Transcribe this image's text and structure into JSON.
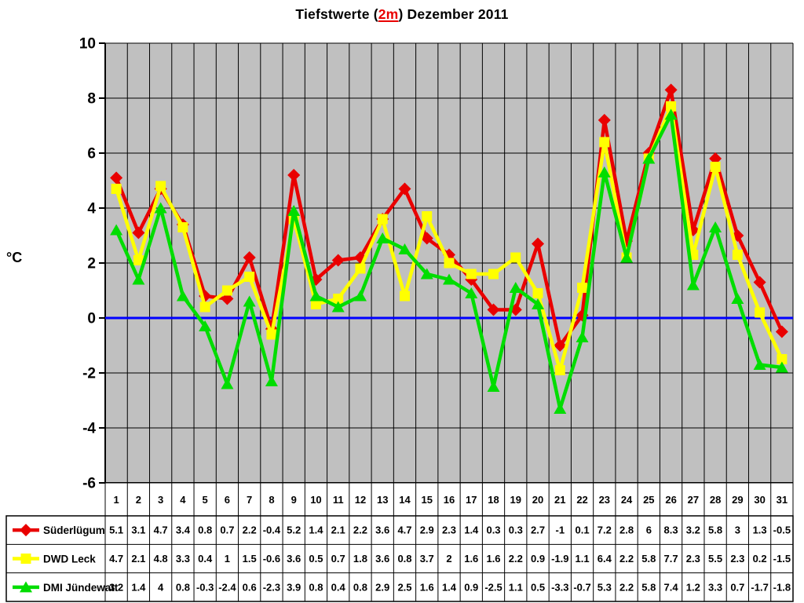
{
  "title": {
    "prefix": "Tiefstwerte (",
    "highlight": "2m",
    "suffix": ") Dezember 2011",
    "highlight_color": "#e90000"
  },
  "colors": {
    "plot_background": "#c0c0c0",
    "grid": "#000000",
    "zero_line": "#0000ff",
    "text": "#000000"
  },
  "chart_data": {
    "type": "line",
    "title": "Tiefstwerte (2m) Dezember 2011",
    "xlabel": "",
    "ylabel": "°C",
    "ylim": [
      -6,
      10
    ],
    "y_ticks": [
      10,
      8,
      6,
      4,
      2,
      0,
      -2,
      -4,
      -6
    ],
    "grid": true,
    "zero_line_color": "#0000ff",
    "legend_position": "bottom-left-table",
    "categories": [
      1,
      2,
      3,
      4,
      5,
      6,
      7,
      8,
      9,
      10,
      11,
      12,
      13,
      14,
      15,
      16,
      17,
      18,
      19,
      20,
      21,
      22,
      23,
      24,
      25,
      26,
      27,
      28,
      29,
      30,
      31
    ],
    "series": [
      {
        "name": "Süderlügum",
        "color": "#e90000",
        "marker": "diamond",
        "values": [
          5.1,
          3.1,
          4.7,
          3.4,
          0.8,
          0.7,
          2.2,
          -0.4,
          5.2,
          1.4,
          2.1,
          2.2,
          3.6,
          4.7,
          2.9,
          2.3,
          1.4,
          0.3,
          0.3,
          2.7,
          -1,
          0.1,
          7.2,
          2.8,
          6,
          8.3,
          3.2,
          5.8,
          3,
          1.3,
          -0.5
        ]
      },
      {
        "name": "DWD Leck",
        "color": "#ffff00",
        "marker": "square",
        "values": [
          4.7,
          2.1,
          4.8,
          3.3,
          0.4,
          1,
          1.5,
          -0.6,
          3.6,
          0.5,
          0.7,
          1.8,
          3.6,
          0.8,
          3.7,
          2,
          1.6,
          1.6,
          2.2,
          0.9,
          -1.9,
          1.1,
          6.4,
          2.2,
          5.8,
          7.7,
          2.3,
          5.5,
          2.3,
          0.2,
          -1.5
        ]
      },
      {
        "name": "DMI Jündewatt",
        "color": "#00dd00",
        "marker": "triangle",
        "values": [
          3.2,
          1.4,
          4,
          0.8,
          -0.3,
          -2.4,
          0.6,
          -2.3,
          3.9,
          0.8,
          0.4,
          0.8,
          2.9,
          2.5,
          1.6,
          1.4,
          0.9,
          -2.5,
          1.1,
          0.5,
          -3.3,
          -0.7,
          5.3,
          2.2,
          5.8,
          7.4,
          1.2,
          3.3,
          0.7,
          -1.7,
          -1.8
        ]
      }
    ]
  }
}
